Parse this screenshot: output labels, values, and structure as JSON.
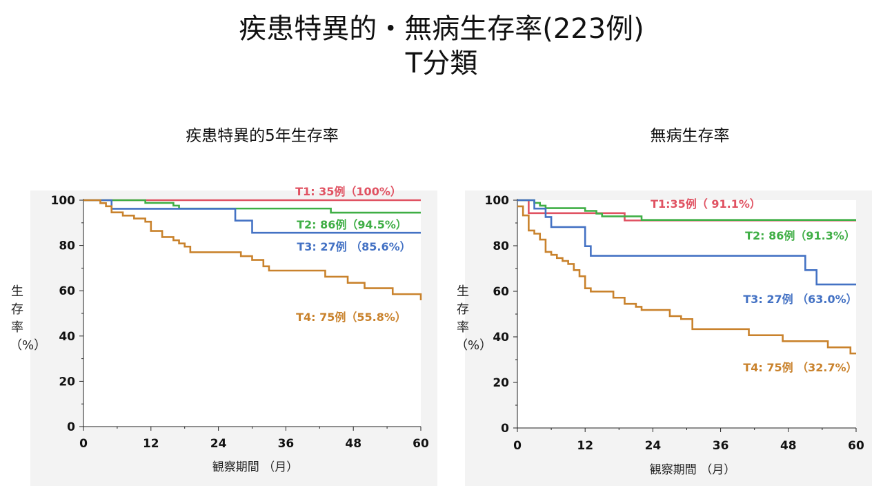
{
  "title": {
    "line1": "疾患特異的・無病生存率(223例)",
    "line2": "T分類"
  },
  "colors": {
    "T1": "#e05262",
    "T2": "#3fae45",
    "T3": "#4472c4",
    "T4": "#c9822c",
    "axis": "#222222",
    "panel": "#f3f3f3"
  },
  "chart_data": [
    {
      "type": "line",
      "step": true,
      "title": "疾患特異的5年生存率",
      "xlabel": "観察期間 （月）",
      "ylabel": "生存率（%）",
      "xlim": [
        0,
        60
      ],
      "ylim": [
        0,
        100
      ],
      "xticks": [
        0,
        12,
        24,
        36,
        48,
        60
      ],
      "yticks": [
        0,
        20,
        40,
        60,
        80,
        100
      ],
      "grid": false,
      "series": [
        {
          "name": "T1: 35例（100%）",
          "color_key": "T1",
          "x": [
            0,
            60
          ],
          "y": [
            100,
            100
          ]
        },
        {
          "name": "T2: 86例（94.5%）",
          "color_key": "T2",
          "x": [
            0,
            11,
            16,
            17,
            44,
            60
          ],
          "y": [
            100,
            98.8,
            97.6,
            96.3,
            94.5,
            94.5
          ]
        },
        {
          "name": "T3: 27例 （85.6%）",
          "color_key": "T3",
          "x": [
            0,
            5,
            27,
            30,
            60
          ],
          "y": [
            100,
            96.2,
            91,
            85.6,
            85.6
          ]
        },
        {
          "name": "T4: 75例（55.8%）",
          "color_key": "T4",
          "x": [
            0,
            3,
            4,
            5,
            7,
            9,
            11,
            12,
            14,
            16,
            17,
            18,
            19,
            28,
            30,
            32,
            33,
            43,
            47,
            50,
            55,
            60
          ],
          "y": [
            100,
            98.7,
            97.3,
            94.6,
            93.2,
            91.9,
            90.5,
            86.4,
            83.7,
            82.3,
            80.9,
            79.5,
            77,
            75.3,
            73.6,
            70.8,
            68.9,
            66.2,
            63.5,
            61.1,
            58.5,
            55.8
          ]
        }
      ]
    },
    {
      "type": "line",
      "step": true,
      "title": "無病生存率",
      "xlabel": "観察期間 （月）",
      "ylabel": "生存率（%）",
      "xlim": [
        0,
        60
      ],
      "ylim": [
        0,
        100
      ],
      "xticks": [
        0,
        12,
        24,
        36,
        48,
        60
      ],
      "yticks": [
        0,
        20,
        40,
        60,
        80,
        100
      ],
      "grid": false,
      "series": [
        {
          "name": "T1:35例（ 91.1%）",
          "color_key": "T1",
          "x": [
            0,
            2,
            19,
            60
          ],
          "y": [
            100,
            94.3,
            91.1,
            91.1
          ]
        },
        {
          "name": "T2: 86例（91.3%）",
          "color_key": "T2",
          "x": [
            0,
            3,
            4,
            5,
            12,
            14,
            15,
            22,
            60
          ],
          "y": [
            100,
            98.8,
            97.6,
            96.5,
            95.3,
            94.1,
            92.9,
            91.3,
            91.3
          ]
        },
        {
          "name": "T3: 27例 （63.0%）",
          "color_key": "T3",
          "x": [
            0,
            3,
            5,
            6,
            12,
            13,
            51,
            53,
            60
          ],
          "y": [
            100,
            96.3,
            92.6,
            88.2,
            79.8,
            75.6,
            69.3,
            63,
            63
          ]
        },
        {
          "name": "T4: 75例 （32.7%）",
          "color_key": "T4",
          "x": [
            0,
            1,
            2,
            3,
            4,
            5,
            6,
            7,
            8,
            9,
            10,
            11,
            12,
            13,
            17,
            19,
            21,
            22,
            27,
            29,
            31,
            41,
            47,
            55,
            59,
            60
          ],
          "y": [
            97.3,
            93.3,
            86.7,
            85.3,
            82.7,
            77.3,
            76,
            74.6,
            73.3,
            72,
            69.3,
            66.6,
            61.3,
            59.9,
            57.2,
            54.5,
            53.2,
            51.8,
            49.1,
            47.8,
            43.4,
            40.7,
            38.1,
            35.4,
            32.7,
            32.7
          ]
        }
      ]
    }
  ]
}
